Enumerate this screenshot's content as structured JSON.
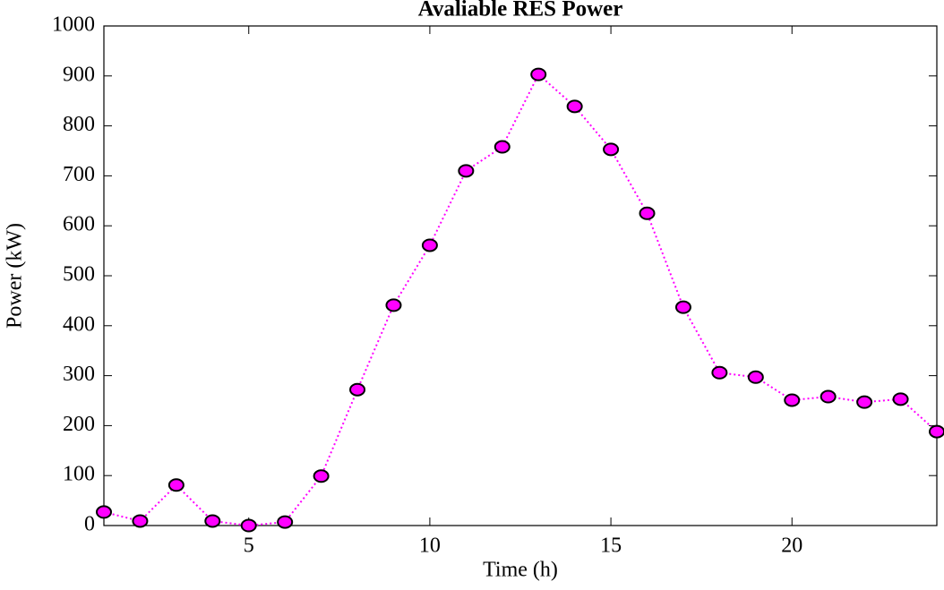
{
  "chart_data": {
    "type": "line",
    "title": "Avaliable RES Power",
    "xlabel": "Time (h)",
    "ylabel": "Power (kW)",
    "x": [
      1,
      2,
      3,
      4,
      5,
      6,
      7,
      8,
      9,
      10,
      11,
      12,
      13,
      14,
      15,
      16,
      17,
      18,
      19,
      20,
      21,
      22,
      23,
      24
    ],
    "series": [
      {
        "name": "RES",
        "color": "#ff00ff",
        "values": [
          27,
          9,
          81,
          9,
          0,
          7,
          99,
          272,
          441,
          561,
          710,
          758,
          903,
          839,
          753,
          625,
          437,
          306,
          297,
          251,
          258,
          247,
          253,
          188
        ]
      }
    ],
    "xlim": [
      1,
      24
    ],
    "xticks": [
      5,
      10,
      15,
      20
    ],
    "ylim": [
      0,
      1000
    ],
    "yticks": [
      0,
      100,
      200,
      300,
      400,
      500,
      600,
      700,
      800,
      900,
      1000
    ]
  }
}
